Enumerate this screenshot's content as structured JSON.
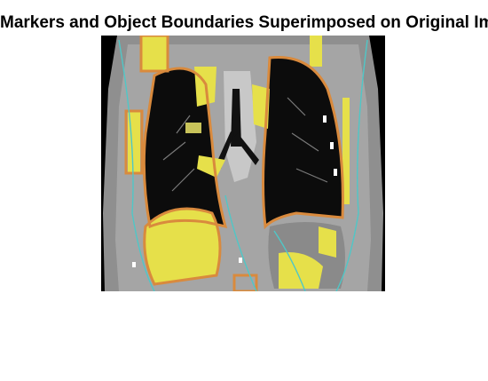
{
  "figure": {
    "title": "Markers and Object Boundaries Superimposed on Original Image",
    "image_description_icon": "ct-coronal-chest-scan-icon",
    "colors": {
      "background": "#ffffff",
      "marker_fill": "#e6e04a",
      "boundary_outline": "#d98a3d",
      "secondary_outline": "#4fc7c7",
      "lung": "#0c0c0c",
      "tissue": "#9a9a9a"
    }
  }
}
